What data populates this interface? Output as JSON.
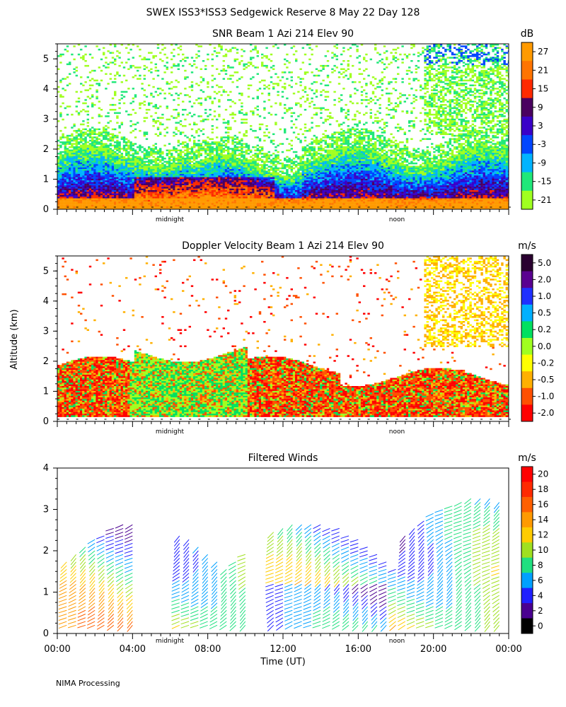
{
  "figure": {
    "title": "SWEX ISS3*ISS3 Sedgewick Reserve   8 May 22 Day 128",
    "ylabel": "Altitude (km)",
    "xlabel": "Time (UT)",
    "footer": "NIMA Processing",
    "marker_midnight": "midnight",
    "marker_noon": "noon",
    "time_ticks": [
      "00:00",
      "04:00",
      "08:00",
      "12:00",
      "16:00",
      "20:00",
      "00:00"
    ]
  },
  "chart_data": [
    {
      "type": "heatmap",
      "title": "SNR Beam 1 Azi 214 Elev 90",
      "colorbar_unit": "dB",
      "colorbar_ticks": [
        "27",
        "21",
        "15",
        "9",
        "3",
        "-3",
        "-9",
        "-15",
        "-21"
      ],
      "colorbar_colors": [
        "#ff9a00",
        "#ff7400",
        "#ff2a00",
        "#4a0060",
        "#3a00c8",
        "#0046ff",
        "#00b4ff",
        "#20e87a",
        "#a0ff20"
      ],
      "x_range_hours": [
        0,
        24
      ],
      "ylim_km": [
        0,
        5.5
      ],
      "y_ticks": [
        "0",
        "1",
        "2",
        "3",
        "4",
        "5"
      ],
      "features": {
        "persistent_echo_top_km": 1.8,
        "strong_layer_km": [
          0.2,
          0.9
        ],
        "peak_snr_time_hours": [
          6,
          10
        ]
      }
    },
    {
      "type": "heatmap",
      "title": "Doppler Velocity Beam 1 Azi 214 Elev 90",
      "colorbar_unit": "m/s",
      "colorbar_ticks": [
        "5.0",
        "2.0",
        "1.0",
        "0.5",
        "0.2",
        "0.0",
        "-0.2",
        "-0.5",
        "-1.0",
        "-2.0"
      ],
      "colorbar_colors": [
        "#2a0030",
        "#5a0090",
        "#2030ff",
        "#00b0ff",
        "#00e060",
        "#a0ff20",
        "#ffff00",
        "#ffb000",
        "#ff5000",
        "#ff0000"
      ],
      "x_range_hours": [
        0,
        24
      ],
      "ylim_km": [
        0,
        5.5
      ],
      "y_ticks": [
        "0",
        "1",
        "2",
        "3",
        "4",
        "5"
      ]
    },
    {
      "type": "scatter",
      "title": "Filtered Winds",
      "colorbar_unit": "m/s",
      "colorbar_ticks": [
        "20",
        "18",
        "16",
        "14",
        "12",
        "10",
        "8",
        "6",
        "4",
        "2",
        "0"
      ],
      "colorbar_colors": [
        "#ff0000",
        "#ff2a00",
        "#ff6000",
        "#ff9a00",
        "#ffcc00",
        "#a0e020",
        "#20e080",
        "#00a0ff",
        "#2020ff",
        "#4a0090",
        "#000000"
      ],
      "x_range_hours": [
        0,
        24
      ],
      "ylim_km": [
        0,
        4
      ],
      "y_ticks": [
        "0",
        "1",
        "2",
        "3",
        "4"
      ],
      "profile_times_hours": [
        0.5,
        1,
        1.5,
        2,
        2.5,
        3,
        3.5,
        4,
        6.5,
        7,
        7.5,
        8,
        8.5,
        9,
        9.5,
        10,
        11.5,
        12,
        12.5,
        13,
        13.5,
        14,
        14.5,
        15,
        15.5,
        16,
        16.5,
        17,
        17.5,
        18,
        18.5,
        19,
        19.5,
        20,
        20.5,
        21,
        21.5,
        22,
        22.5,
        23,
        23.5
      ]
    }
  ]
}
